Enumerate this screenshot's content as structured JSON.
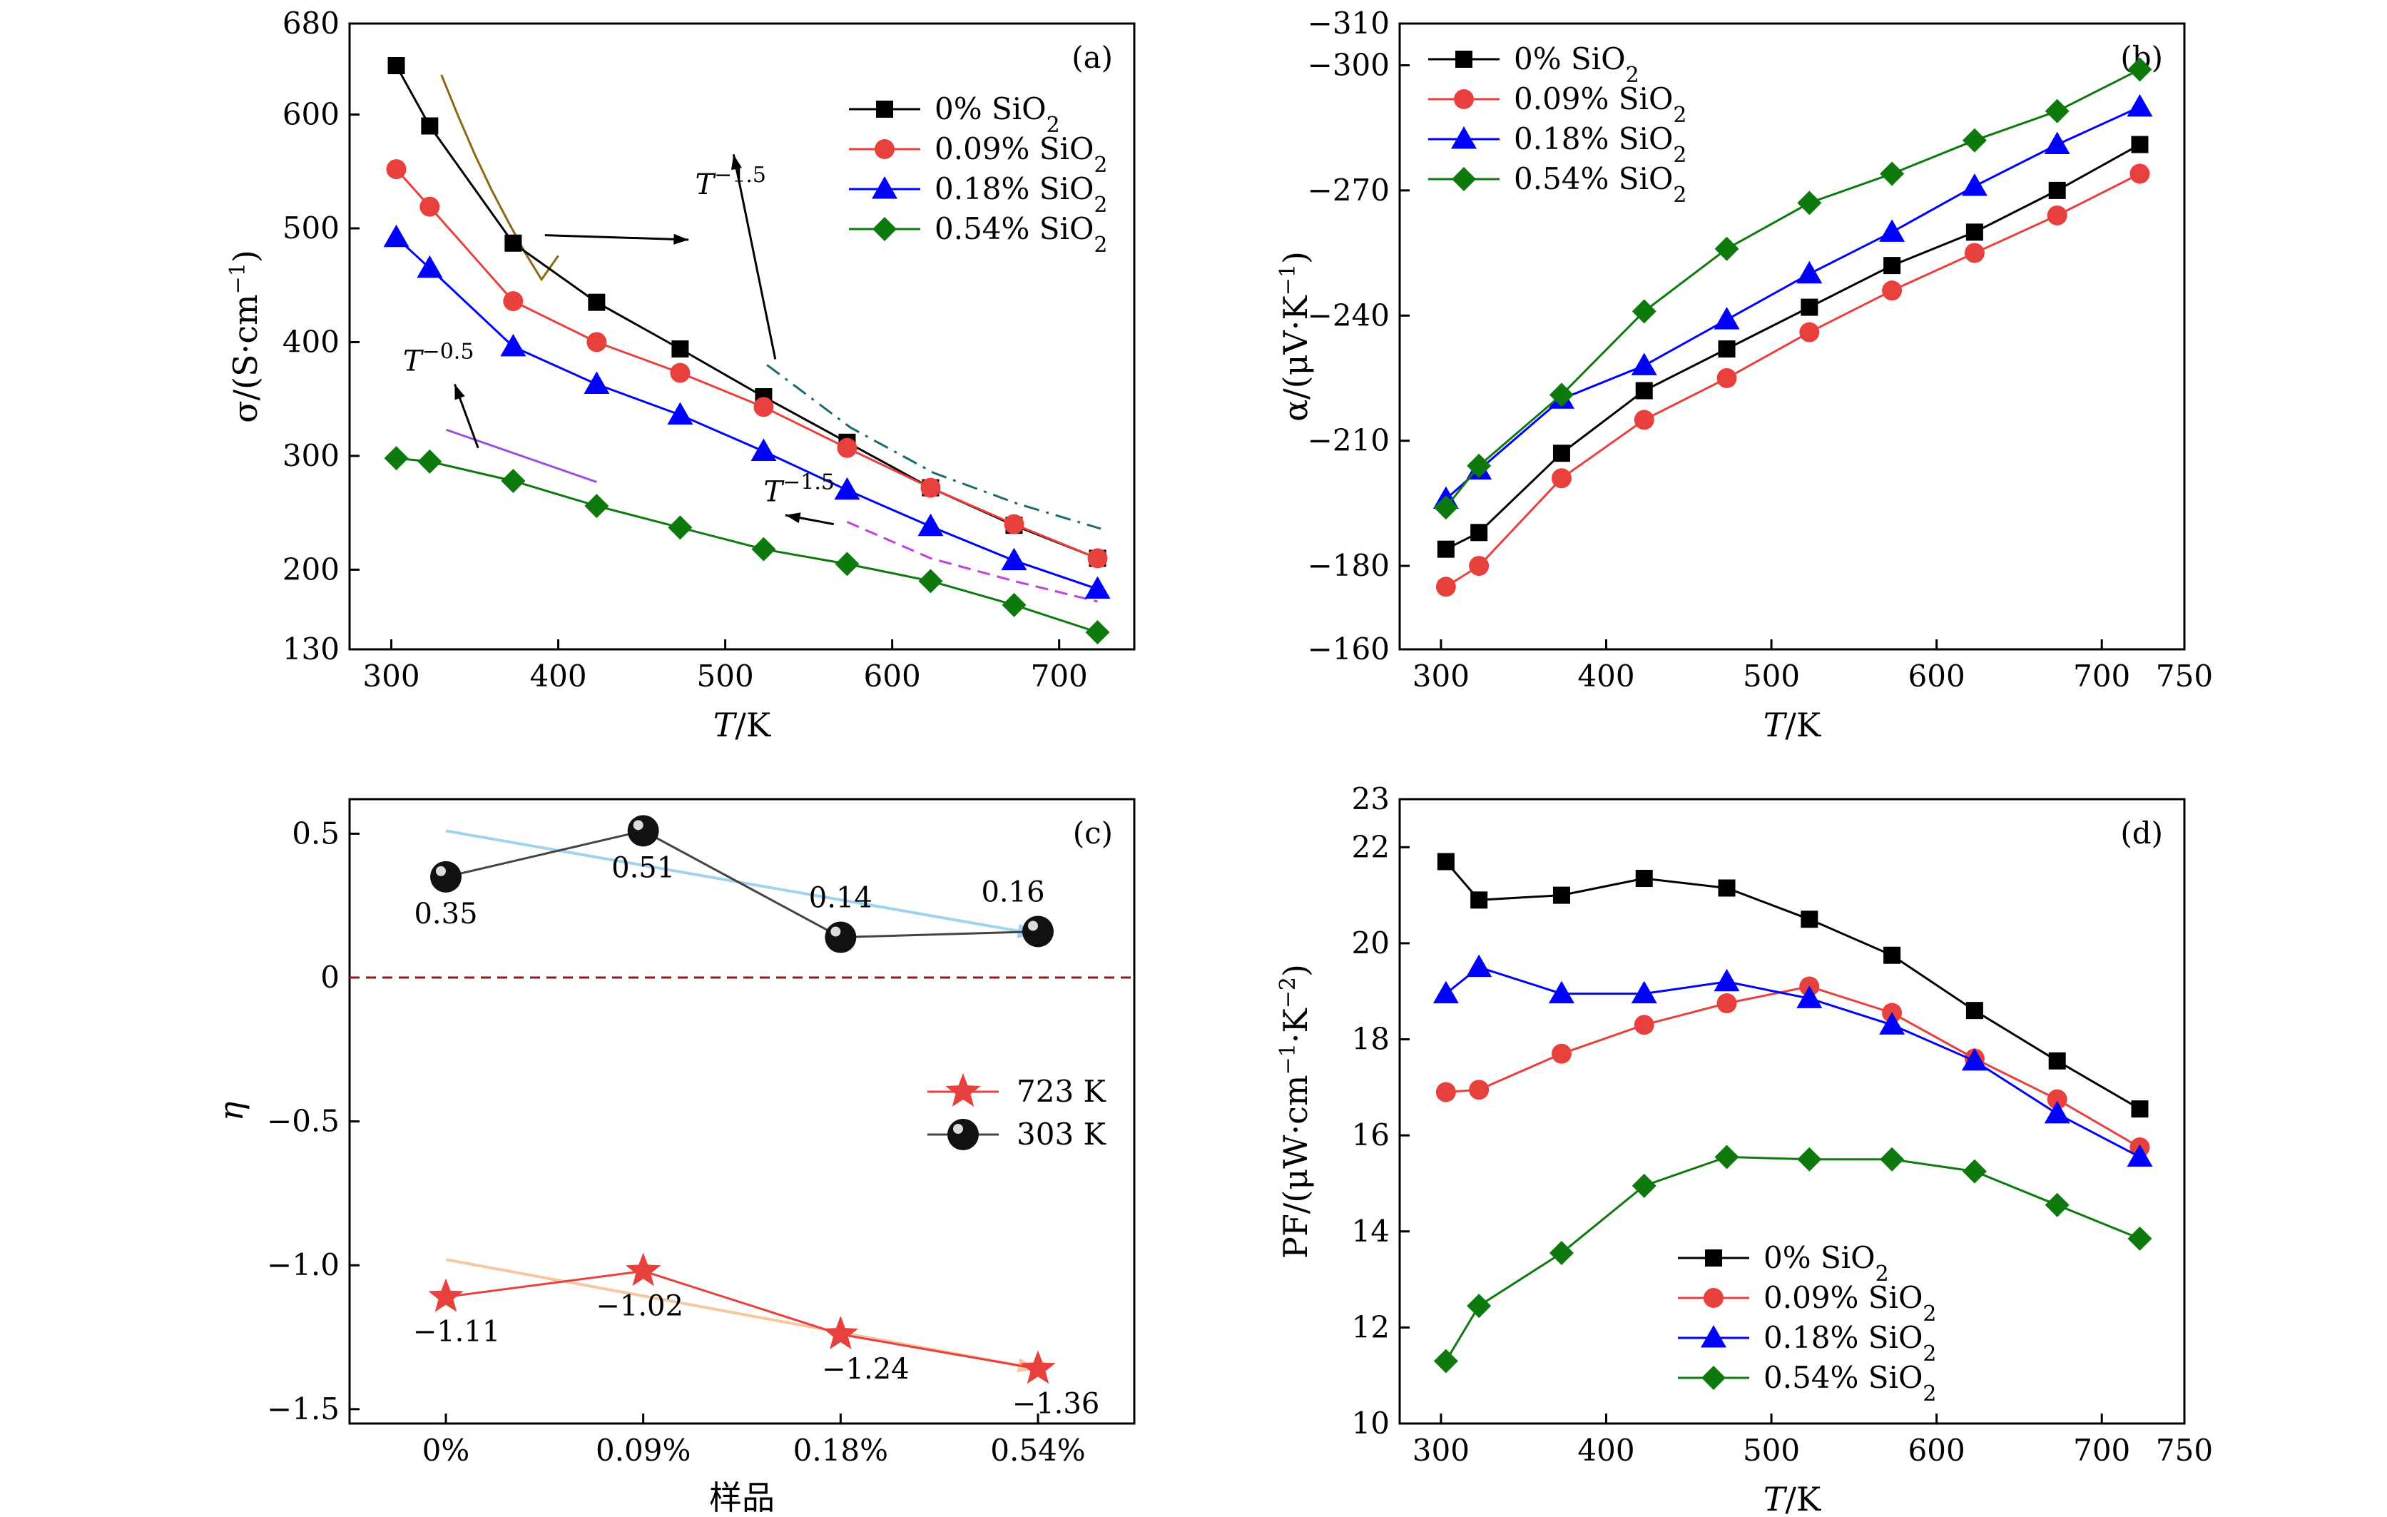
{
  "figure": {
    "panels": [
      "a",
      "b",
      "c",
      "d"
    ]
  },
  "chart_data": [
    {
      "id": "a",
      "type": "line",
      "panel_label": "(a)",
      "xlabel": "T/K",
      "ylabel": "σ/(S·cm⁻¹)",
      "xlim": [
        275,
        745
      ],
      "ylim": [
        130,
        680
      ],
      "xticks": [
        300,
        400,
        500,
        600,
        700
      ],
      "yticks": [
        130,
        200,
        300,
        400,
        500,
        600,
        680
      ],
      "x": [
        303,
        323,
        373,
        423,
        473,
        523,
        573,
        623,
        673,
        723
      ],
      "series": [
        {
          "name": "0% SiO₂",
          "color": "#000000",
          "marker": "square",
          "values": [
            643,
            590,
            487,
            435,
            394,
            352,
            312,
            272,
            239,
            210
          ]
        },
        {
          "name": "0.09% SiO₂",
          "color": "#e8403c",
          "marker": "circle",
          "values": [
            552,
            519,
            436,
            400,
            373,
            343,
            307,
            272,
            240,
            210
          ]
        },
        {
          "name": "0.18% SiO₂",
          "color": "#0000ff",
          "marker": "triangle",
          "values": [
            492,
            465,
            396,
            363,
            336,
            304,
            270,
            238,
            208,
            183
          ]
        },
        {
          "name": "0.54% SiO₂",
          "color": "#0e7a0e",
          "marker": "diamond",
          "values": [
            298,
            295,
            278,
            256,
            237,
            218,
            205,
            190,
            169,
            145
          ]
        }
      ],
      "fit_lines": [
        {
          "label": "T^{-1.5}",
          "color": "#8b6914",
          "style": "solid",
          "x": [
            330,
            340,
            350,
            360,
            370,
            380,
            390,
            400
          ],
          "y": [
            635,
            599,
            565,
            534,
            506,
            479,
            455,
            476
          ]
        },
        {
          "label": "T^{-1.5}",
          "color": "#1a6b6b",
          "style": "dashdot",
          "x": [
            525,
            575,
            625,
            675,
            725
          ],
          "y": [
            380,
            325,
            285,
            258,
            236
          ]
        },
        {
          "label": "T^{-0.5}",
          "color": "#9b4fe0",
          "style": "solid",
          "x": [
            333,
            423
          ],
          "y": [
            323,
            277
          ]
        },
        {
          "label": "T^{-1.5}",
          "color": "#c040e0",
          "style": "dashed",
          "x": [
            573,
            623,
            673,
            723
          ],
          "y": [
            242,
            210,
            190,
            172
          ]
        }
      ],
      "annotations": [
        {
          "text": "T",
          "sup": "−1.5",
          "x": 482,
          "y": 530
        },
        {
          "text": "T",
          "sup": "−0.5",
          "x": 307,
          "y": 375
        },
        {
          "text": "T",
          "sup": "−1.5",
          "x": 523,
          "y": 260
        }
      ],
      "legend_position": "top-right"
    },
    {
      "id": "b",
      "type": "line",
      "panel_label": "(b)",
      "xlabel": "T/K",
      "ylabel": "α/(μV·K⁻¹)",
      "xlim": [
        275,
        750
      ],
      "ylim": [
        -160,
        -310
      ],
      "xticks": [
        300,
        400,
        500,
        600,
        700,
        750
      ],
      "yticks": [
        -160,
        -180,
        -210,
        -240,
        -270,
        -300,
        -310
      ],
      "x": [
        303,
        323,
        373,
        423,
        473,
        523,
        573,
        623,
        673,
        723
      ],
      "series": [
        {
          "name": "0% SiO₂",
          "color": "#000000",
          "marker": "square",
          "values": [
            -184,
            -188,
            -207,
            -222,
            -232,
            -242,
            -252,
            -260,
            -270,
            -281
          ]
        },
        {
          "name": "0.09% SiO₂",
          "color": "#e8403c",
          "marker": "circle",
          "values": [
            -175,
            -180,
            -201,
            -215,
            -225,
            -236,
            -246,
            -255,
            -264,
            -274
          ]
        },
        {
          "name": "0.18% SiO₂",
          "color": "#0000ff",
          "marker": "triangle",
          "values": [
            -196,
            -203,
            -220,
            -228,
            -239,
            -250,
            -260,
            -271,
            -281,
            -290
          ]
        },
        {
          "name": "0.54% SiO₂",
          "color": "#0e7a0e",
          "marker": "diamond",
          "values": [
            -194,
            -204,
            -221,
            -241,
            -256,
            -267,
            -274,
            -282,
            -289,
            -299
          ]
        }
      ],
      "legend_position": "top-left"
    },
    {
      "id": "c",
      "type": "line",
      "panel_label": "(c)",
      "xlabel": "样品",
      "ylabel": "η",
      "categories": [
        "0%",
        "0.09%",
        "0.18%",
        "0.54%"
      ],
      "ylim": [
        -1.55,
        0.62
      ],
      "yticks": [
        -1.5,
        -1.0,
        -0.5,
        0,
        0.5
      ],
      "ytick_labels": [
        "−1.5",
        "−1.0",
        "−0.5",
        "0",
        "0.5"
      ],
      "series": [
        {
          "name": "723 K",
          "color": "#e8403c",
          "marker": "star",
          "values": [
            -1.11,
            -1.02,
            -1.24,
            -1.36
          ],
          "labels": [
            "−1.11",
            "−1.02",
            "−1.24",
            "−1.36"
          ]
        },
        {
          "name": "303 K",
          "color": "#000000",
          "marker": "ball",
          "values": [
            0.35,
            0.51,
            0.14,
            0.16
          ],
          "labels": [
            "0.35",
            "0.51",
            "0.14",
            "0.16"
          ]
        }
      ],
      "reference_line": {
        "y": 0,
        "color": "#8b1a1a",
        "style": "dashed"
      },
      "trend_arrows": [
        {
          "color": "#9fd3f0",
          "from": [
            0,
            0.51
          ],
          "to": [
            3,
            0.15
          ]
        },
        {
          "color": "#f5c8a0",
          "from": [
            0,
            -0.98
          ],
          "to": [
            3,
            -1.36
          ]
        }
      ],
      "legend_position": "center-right"
    },
    {
      "id": "d",
      "type": "line",
      "panel_label": "(d)",
      "xlabel": "T/K",
      "ylabel": "PF/(μW·cm⁻¹·K⁻²)",
      "xlim": [
        275,
        750
      ],
      "ylim": [
        10,
        23
      ],
      "xticks": [
        300,
        400,
        500,
        600,
        700,
        750
      ],
      "yticks": [
        10,
        12,
        14,
        16,
        18,
        20,
        22,
        23
      ],
      "x": [
        303,
        323,
        373,
        423,
        473,
        523,
        573,
        623,
        673,
        723
      ],
      "series": [
        {
          "name": "0% SiO₂",
          "color": "#000000",
          "marker": "square",
          "values": [
            21.7,
            20.9,
            21.0,
            21.35,
            21.15,
            20.5,
            19.75,
            18.6,
            17.55,
            16.55
          ]
        },
        {
          "name": "0.09% SiO₂",
          "color": "#e8403c",
          "marker": "circle",
          "values": [
            16.9,
            16.95,
            17.7,
            18.3,
            18.75,
            19.1,
            18.55,
            17.6,
            16.75,
            15.75
          ]
        },
        {
          "name": "0.18% SiO₂",
          "color": "#0000ff",
          "marker": "triangle",
          "values": [
            18.95,
            19.5,
            18.95,
            18.95,
            19.2,
            18.85,
            18.3,
            17.55,
            16.45,
            15.55
          ]
        },
        {
          "name": "0.54% SiO₂",
          "color": "#0e7a0e",
          "marker": "diamond",
          "values": [
            11.3,
            12.45,
            13.55,
            14.95,
            15.55,
            15.5,
            15.5,
            15.25,
            14.55,
            13.85
          ]
        }
      ],
      "legend_position": "bottom-center"
    }
  ]
}
